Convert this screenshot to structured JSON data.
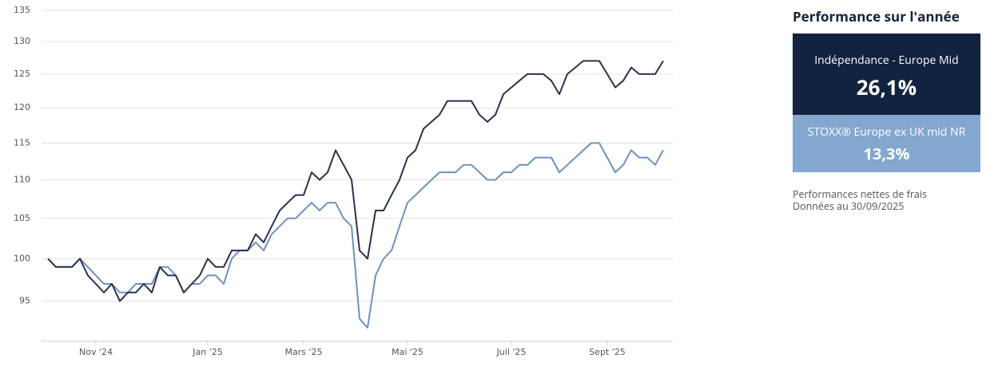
{
  "chart_data": {
    "type": "line",
    "categories": [
      null,
      null,
      null,
      null,
      null,
      null,
      "Nov '24",
      null,
      null,
      null,
      null,
      null,
      null,
      null,
      null,
      null,
      null,
      null,
      null,
      null,
      "Jan '25",
      null,
      null,
      null,
      null,
      null,
      null,
      null,
      null,
      null,
      null,
      null,
      "Mars '25",
      null,
      null,
      null,
      null,
      null,
      null,
      null,
      null,
      null,
      null,
      null,
      null,
      "Mai '25",
      null,
      null,
      null,
      null,
      null,
      null,
      null,
      null,
      null,
      null,
      null,
      null,
      "Juil '25",
      null,
      null,
      null,
      null,
      null,
      null,
      null,
      null,
      null,
      null,
      null,
      "Sept '25",
      null,
      null,
      null,
      null,
      null,
      null,
      null
    ],
    "series": [
      {
        "name": "Indépendance - Europe Mid",
        "color": "#2b3150",
        "values": [
          100,
          99,
          99,
          99,
          100,
          98,
          97,
          96,
          97,
          95,
          96,
          96,
          97,
          96,
          99,
          98,
          98,
          96,
          97,
          98,
          100,
          99,
          99,
          101,
          101,
          101,
          103,
          102,
          104,
          106,
          107,
          108,
          108,
          111,
          110,
          111,
          114,
          112,
          110,
          101,
          100,
          106,
          106,
          108,
          110,
          113,
          114,
          117,
          118,
          119,
          121,
          121,
          121,
          121,
          119,
          118,
          119,
          122,
          123,
          124,
          125,
          125,
          125,
          124,
          122,
          125,
          126,
          127,
          127,
          127,
          125,
          123,
          124,
          126,
          125,
          125,
          125,
          127
        ]
      },
      {
        "name": "STOXX® Europe ex UK mid NR",
        "color": "#6b93bd",
        "values": [
          100,
          99,
          99,
          99,
          100,
          99,
          98,
          97,
          97,
          96,
          96,
          97,
          97,
          97,
          99,
          99,
          98,
          96,
          97,
          97,
          98,
          98,
          97,
          100,
          101,
          101,
          102,
          101,
          103,
          104,
          105,
          105,
          106,
          107,
          106,
          107,
          107,
          105,
          104,
          93,
          92,
          98,
          100,
          101,
          104,
          107,
          108,
          109,
          110,
          111,
          111,
          111,
          112,
          112,
          111,
          110,
          110,
          111,
          111,
          112,
          112,
          113,
          113,
          113,
          111,
          112,
          113,
          114,
          115,
          115,
          113,
          111,
          112,
          114,
          113,
          113,
          112,
          114
        ]
      }
    ],
    "ylim": [
      90.5,
      135
    ],
    "yticks": [
      95,
      100,
      105,
      110,
      115,
      120,
      125,
      130,
      135
    ],
    "yscale": "log",
    "grid": true
  },
  "panel": {
    "title": "Performance sur l'année",
    "performances": [
      "26,1%",
      "13,3%"
    ],
    "notes": [
      "Performances nettes de frais",
      "Données au 30/09/2025"
    ]
  }
}
